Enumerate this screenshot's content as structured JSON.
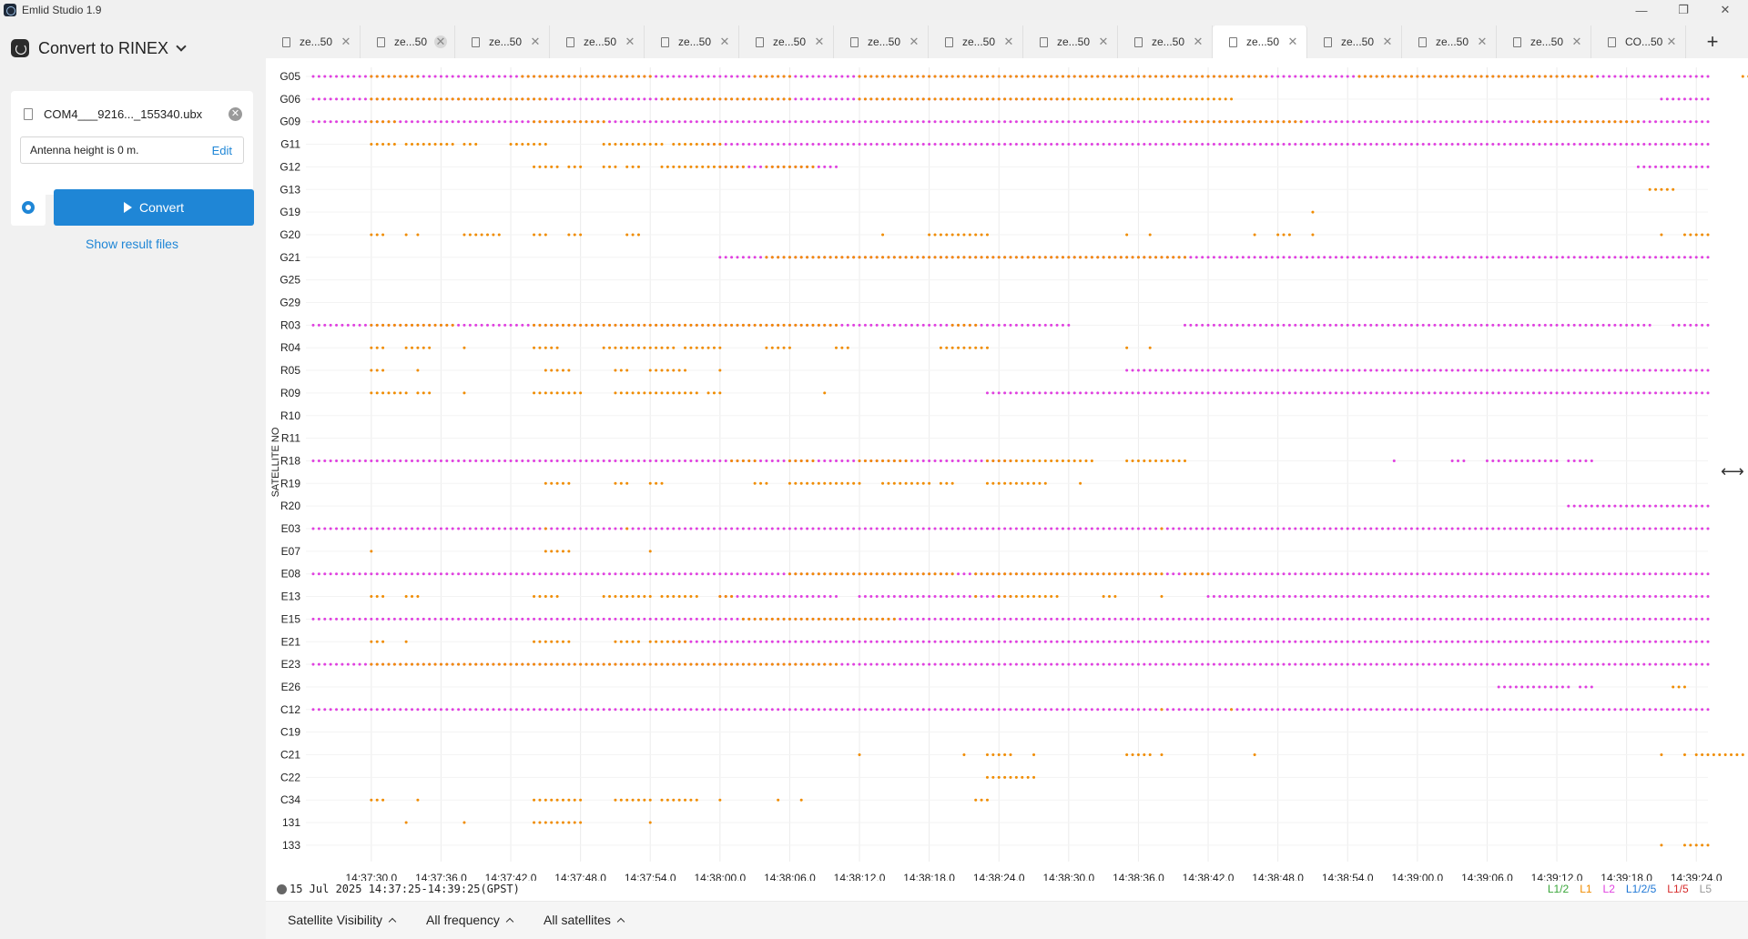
{
  "window": {
    "title": "Emlid Studio 1.9"
  },
  "sidebar": {
    "mode_title": "Convert to RINEX",
    "file_name": "COM4___9216..._155340.ubx",
    "antenna_text": "Antenna height is 0 m.",
    "edit_label": "Edit",
    "convert_label": "Convert",
    "show_results_label": "Show result files"
  },
  "tabs": [
    {
      "label": "ze...50"
    },
    {
      "label": "ze...50"
    },
    {
      "label": "ze...50"
    },
    {
      "label": "ze...50"
    },
    {
      "label": "ze...50"
    },
    {
      "label": "ze...50"
    },
    {
      "label": "ze...50"
    },
    {
      "label": "ze...50"
    },
    {
      "label": "ze...50"
    },
    {
      "label": "ze...50"
    },
    {
      "label": "ze...50",
      "active": true
    },
    {
      "label": "ze...50"
    },
    {
      "label": "ze...50"
    },
    {
      "label": "ze...50"
    },
    {
      "label": "CO...50"
    }
  ],
  "add_tab_label": "+",
  "status": {
    "time_range": "15 Jul 2025 14:37:25-14:39:25(GPST)"
  },
  "legend": [
    {
      "label": "L1/2",
      "color": "#3aa63a"
    },
    {
      "label": "L1",
      "color": "#f08c00"
    },
    {
      "label": "L2",
      "color": "#e040e0"
    },
    {
      "label": "L1/2/5",
      "color": "#1f78d6"
    },
    {
      "label": "L1/5",
      "color": "#d62c2c"
    },
    {
      "label": "L5",
      "color": "#999999"
    }
  ],
  "bottom": {
    "visibility_label": "Satellite Visibility",
    "frequency_label": "All frequency",
    "satellites_label": "All satellites"
  },
  "chart_data": {
    "type": "scatter",
    "ylabel": "SATELLITE NO",
    "x_range": [
      "14:37:25",
      "14:39:25"
    ],
    "x_ticks": [
      "14:37:30.0",
      "14:37:36.0",
      "14:37:42.0",
      "14:37:48.0",
      "14:37:54.0",
      "14:38:00.0",
      "14:38:06.0",
      "14:38:12.0",
      "14:38:18.0",
      "14:38:24.0",
      "14:38:30.0",
      "14:38:36.0",
      "14:38:42.0",
      "14:38:48.0",
      "14:38:54.0",
      "14:39:00.0",
      "14:39:06.0",
      "14:39:12.0",
      "14:39:18.0",
      "14:39:24.0"
    ],
    "satellites": [
      {
        "name": "G05",
        "l2": [
          [
            25,
            145
          ]
        ],
        "l1": [
          [
            30,
            34
          ],
          [
            43,
            54
          ],
          [
            63,
            66
          ],
          [
            72,
            107
          ],
          [
            115,
            135
          ],
          [
            148,
            150
          ]
        ]
      },
      {
        "name": "G06",
        "l2": [
          [
            25,
            90
          ],
          [
            141,
            145
          ]
        ],
        "l1": [
          [
            30,
            45
          ],
          [
            55,
            66
          ],
          [
            72,
            104
          ]
        ]
      },
      {
        "name": "G09",
        "l2": [
          [
            25,
            145
          ]
        ],
        "l1": [
          [
            30,
            32
          ],
          [
            44,
            50
          ],
          [
            100,
            110
          ],
          [
            130,
            139
          ]
        ]
      },
      {
        "name": "G11",
        "l2": [
          [
            59,
            145
          ]
        ],
        "l1": [
          [
            30,
            32
          ],
          [
            33,
            37
          ],
          [
            38,
            39
          ],
          [
            42,
            45
          ],
          [
            50,
            55
          ],
          [
            56,
            60
          ]
        ]
      },
      {
        "name": "G12",
        "l2": [
          [
            60,
            70
          ],
          [
            139,
            145
          ]
        ],
        "l1": [
          [
            44,
            46
          ],
          [
            47,
            48
          ],
          [
            50,
            51
          ],
          [
            52,
            53
          ],
          [
            55,
            62
          ],
          [
            64,
            68
          ]
        ]
      },
      {
        "name": "G13",
        "l2": [],
        "l1": [
          [
            140,
            142
          ]
        ]
      },
      {
        "name": "G19",
        "l2": [],
        "l1": [
          [
            111,
            111
          ]
        ]
      },
      {
        "name": "G20",
        "l2": [],
        "l1": [
          [
            30,
            31
          ],
          [
            33,
            33
          ],
          [
            34,
            34
          ],
          [
            38,
            41
          ],
          [
            44,
            45
          ],
          [
            47,
            48
          ],
          [
            52,
            53
          ],
          [
            74,
            74
          ],
          [
            78,
            83
          ],
          [
            95,
            95
          ],
          [
            97,
            97
          ],
          [
            106,
            106
          ],
          [
            108,
            109
          ],
          [
            111,
            111
          ],
          [
            141,
            141
          ],
          [
            143,
            145
          ]
        ]
      },
      {
        "name": "G21",
        "l2": [
          [
            60,
            145
          ]
        ],
        "l1": [
          [
            64,
            100
          ]
        ]
      },
      {
        "name": "G25",
        "l2": [],
        "l1": []
      },
      {
        "name": "G29",
        "l2": [],
        "l1": []
      },
      {
        "name": "R03",
        "l2": [
          [
            25,
            90
          ],
          [
            100,
            140
          ],
          [
            142,
            145
          ]
        ],
        "l1": [
          [
            30,
            37
          ],
          [
            44,
            70
          ],
          [
            80,
            82
          ]
        ]
      },
      {
        "name": "R04",
        "l2": [],
        "l1": [
          [
            30,
            31
          ],
          [
            33,
            35
          ],
          [
            38,
            38
          ],
          [
            44,
            46
          ],
          [
            50,
            56
          ],
          [
            57,
            60
          ],
          [
            64,
            66
          ],
          [
            70,
            71
          ],
          [
            79,
            83
          ],
          [
            95,
            95
          ],
          [
            97,
            97
          ]
        ]
      },
      {
        "name": "R05",
        "l2": [
          [
            95,
            145
          ]
        ],
        "l1": [
          [
            30,
            31
          ],
          [
            34,
            34
          ],
          [
            45,
            47
          ],
          [
            51,
            52
          ],
          [
            54,
            57
          ],
          [
            60,
            60
          ]
        ]
      },
      {
        "name": "R09",
        "l2": [
          [
            83,
            145
          ]
        ],
        "l1": [
          [
            30,
            33
          ],
          [
            34,
            35
          ],
          [
            38,
            38
          ],
          [
            44,
            48
          ],
          [
            51,
            58
          ],
          [
            59,
            60
          ],
          [
            69,
            69
          ]
        ]
      },
      {
        "name": "R10",
        "l2": [],
        "l1": []
      },
      {
        "name": "R11",
        "l2": [],
        "l1": []
      },
      {
        "name": "R18",
        "l2": [
          [
            25,
            85
          ],
          [
            118,
            118
          ],
          [
            123,
            124
          ],
          [
            126,
            132
          ],
          [
            133,
            135
          ]
        ],
        "l1": [
          [
            61,
            63
          ],
          [
            66,
            68
          ],
          [
            72,
            76
          ],
          [
            83,
            92
          ],
          [
            95,
            100
          ]
        ]
      },
      {
        "name": "R19",
        "l2": [],
        "l1": [
          [
            45,
            47
          ],
          [
            51,
            52
          ],
          [
            54,
            55
          ],
          [
            63,
            64
          ],
          [
            66,
            72
          ],
          [
            74,
            78
          ],
          [
            79,
            80
          ],
          [
            83,
            88
          ],
          [
            91,
            91
          ]
        ]
      },
      {
        "name": "R20",
        "l2": [
          [
            133,
            145
          ]
        ],
        "l1": []
      },
      {
        "name": "E03",
        "l2": [
          [
            25,
            145
          ]
        ],
        "l1": [
          [
            45,
            45
          ],
          [
            52,
            52
          ],
          [
            98,
            98
          ]
        ]
      },
      {
        "name": "E07",
        "l2": [],
        "l1": [
          [
            30,
            30
          ],
          [
            45,
            47
          ],
          [
            54,
            54
          ]
        ]
      },
      {
        "name": "E08",
        "l2": [
          [
            25,
            145
          ]
        ],
        "l1": [
          [
            66,
            80
          ],
          [
            82,
            98
          ],
          [
            100,
            102
          ]
        ]
      },
      {
        "name": "E13",
        "l2": [
          [
            60,
            70
          ],
          [
            72,
            85
          ],
          [
            102,
            145
          ]
        ],
        "l1": [
          [
            30,
            31
          ],
          [
            33,
            34
          ],
          [
            44,
            46
          ],
          [
            50,
            54
          ],
          [
            55,
            58
          ],
          [
            60,
            61
          ],
          [
            82,
            82
          ],
          [
            84,
            89
          ],
          [
            93,
            94
          ],
          [
            98,
            98
          ]
        ]
      },
      {
        "name": "E15",
        "l2": [
          [
            25,
            145
          ]
        ],
        "l1": [
          [
            62,
            75
          ]
        ]
      },
      {
        "name": "E21",
        "l2": [
          [
            56,
            145
          ]
        ],
        "l1": [
          [
            30,
            31
          ],
          [
            33,
            33
          ],
          [
            44,
            47
          ],
          [
            51,
            53
          ],
          [
            54,
            57
          ]
        ]
      },
      {
        "name": "E23",
        "l2": [
          [
            25,
            145
          ]
        ],
        "l1": [
          [
            30,
            70
          ]
        ]
      },
      {
        "name": "E26",
        "l2": [
          [
            127,
            133
          ],
          [
            134,
            135
          ]
        ],
        "l1": [
          [
            142,
            143
          ]
        ]
      },
      {
        "name": "C12",
        "l2": [
          [
            25,
            145
          ]
        ],
        "l1": [
          [
            98,
            98
          ],
          [
            104,
            104
          ]
        ]
      },
      {
        "name": "C19",
        "l2": [],
        "l1": []
      },
      {
        "name": "C21",
        "l2": [],
        "l1": [
          [
            72,
            72
          ],
          [
            81,
            81
          ],
          [
            83,
            85
          ],
          [
            87,
            87
          ],
          [
            95,
            97
          ],
          [
            98,
            98
          ],
          [
            106,
            106
          ],
          [
            141,
            141
          ],
          [
            143,
            143
          ],
          [
            144,
            148
          ]
        ]
      },
      {
        "name": "C22",
        "l2": [],
        "l1": [
          [
            83,
            87
          ]
        ]
      },
      {
        "name": "C34",
        "l2": [],
        "l1": [
          [
            30,
            31
          ],
          [
            34,
            34
          ],
          [
            44,
            48
          ],
          [
            51,
            54
          ],
          [
            55,
            58
          ],
          [
            60,
            60
          ],
          [
            65,
            65
          ],
          [
            67,
            67
          ],
          [
            82,
            83
          ]
        ]
      },
      {
        "name": "131",
        "l2": [],
        "l1": [
          [
            33,
            33
          ],
          [
            38,
            38
          ],
          [
            44,
            48
          ],
          [
            54,
            54
          ]
        ]
      },
      {
        "name": "133",
        "l2": [],
        "l1": [
          [
            141,
            141
          ],
          [
            143,
            145
          ]
        ]
      }
    ]
  }
}
